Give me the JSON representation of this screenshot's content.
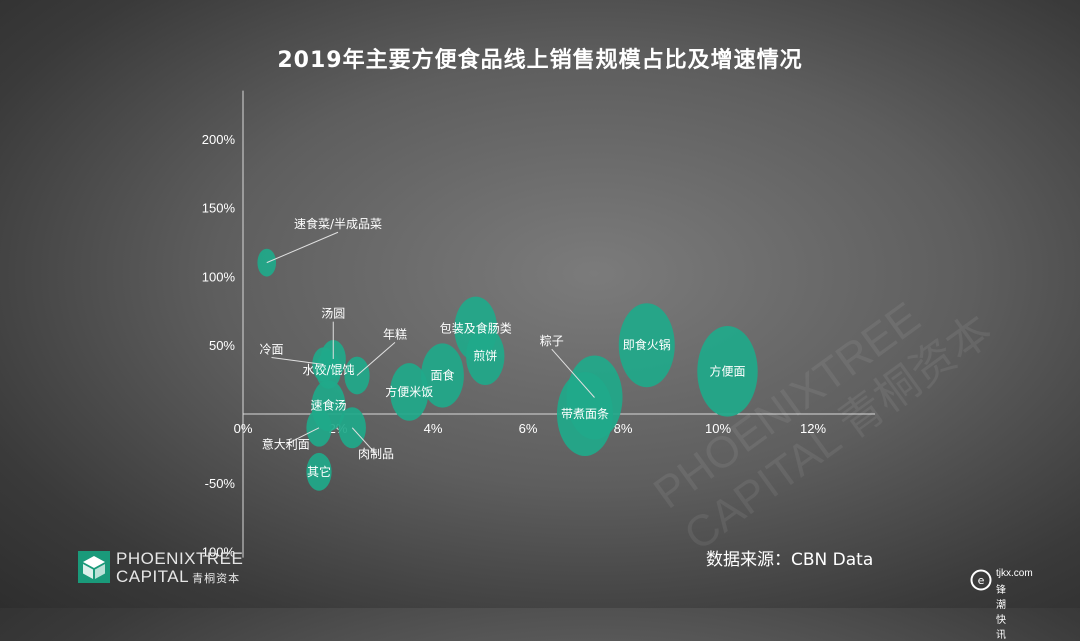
{
  "title": "2019年主要方便食品线上销售规模占比及增速情况",
  "source": "数据来源：CBN Data",
  "logo": {
    "line1": "PHOENIXTREE",
    "line2": "CAPITAL",
    "line2_cn": "青桐资本"
  },
  "watermark": {
    "line1": "PHOENIXTREE",
    "line2": "CAPITAL 青桐资本"
  },
  "corner_mark": {
    "domain": "tjkx.com",
    "name": "锋潮快讯"
  },
  "colors": {
    "bubble": "#1fa98a",
    "axis": "#d9d9d9",
    "text": "#ffffff"
  },
  "chart_data": {
    "type": "bubble",
    "title": "2019年主要方便食品线上销售规模占比及增速情况",
    "xlabel": "",
    "ylabel": "",
    "xlim": [
      0,
      14
    ],
    "ylim": [
      -100,
      235
    ],
    "xticks": [
      0,
      2,
      4,
      6,
      8,
      10,
      12
    ],
    "xtick_labels": [
      "0%",
      "2%",
      "4%",
      "6%",
      "8%",
      "10%",
      "12%"
    ],
    "yticks": [
      200,
      150,
      100,
      50,
      -50,
      -100
    ],
    "ytick_labels": [
      "200%",
      "150%",
      "100%",
      "50%",
      "-50%",
      "-100%"
    ],
    "grid": false,
    "points": [
      {
        "label": "速食菜/半成品菜",
        "x": 0.5,
        "y": 110,
        "size": 0.15,
        "label_mode": "leader",
        "lx": 2.0,
        "ly": 135
      },
      {
        "label": "汤圆",
        "x": 1.9,
        "y": 40,
        "size": 0.3,
        "label_mode": "leader",
        "lx": 1.9,
        "ly": 70
      },
      {
        "label": "冷面",
        "x": 1.7,
        "y": 36,
        "size": 0.25,
        "label_mode": "leader",
        "lx": 0.6,
        "ly": 44
      },
      {
        "label": "水饺/馄饨",
        "x": 1.8,
        "y": 32,
        "size": 0.3,
        "label_mode": "inside"
      },
      {
        "label": "年糕",
        "x": 2.4,
        "y": 28,
        "size": 0.3,
        "label_mode": "leader",
        "lx": 3.2,
        "ly": 55
      },
      {
        "label": "速食汤",
        "x": 1.8,
        "y": 6,
        "size": 0.5,
        "label_mode": "inside"
      },
      {
        "label": "意大利面",
        "x": 1.6,
        "y": -10,
        "size": 0.3,
        "label_mode": "leader",
        "lx": 0.9,
        "ly": -25
      },
      {
        "label": "肉制品",
        "x": 2.3,
        "y": -10,
        "size": 0.35,
        "label_mode": "leader",
        "lx": 2.8,
        "ly": -32
      },
      {
        "label": "其它",
        "x": 1.6,
        "y": -42,
        "size": 0.3,
        "label_mode": "inside"
      },
      {
        "label": "方便米饭",
        "x": 3.5,
        "y": 16,
        "size": 0.6,
        "label_mode": "inside"
      },
      {
        "label": "面食",
        "x": 4.2,
        "y": 28,
        "size": 0.7,
        "label_mode": "inside"
      },
      {
        "label": "包装及食肠类",
        "x": 4.9,
        "y": 62,
        "size": 0.7,
        "label_mode": "inside"
      },
      {
        "label": "煎饼",
        "x": 5.1,
        "y": 42,
        "size": 0.6,
        "label_mode": "inside"
      },
      {
        "label": "粽子",
        "x": 7.4,
        "y": 12,
        "size": 1.0,
        "label_mode": "leader",
        "lx": 6.5,
        "ly": 50
      },
      {
        "label": "带煮面条",
        "x": 7.2,
        "y": 0,
        "size": 1.0,
        "label_mode": "inside"
      },
      {
        "label": "即食火锅",
        "x": 8.5,
        "y": 50,
        "size": 1.0,
        "label_mode": "inside"
      },
      {
        "label": "方便面",
        "x": 10.2,
        "y": 31,
        "size": 1.1,
        "label_mode": "inside"
      }
    ]
  }
}
